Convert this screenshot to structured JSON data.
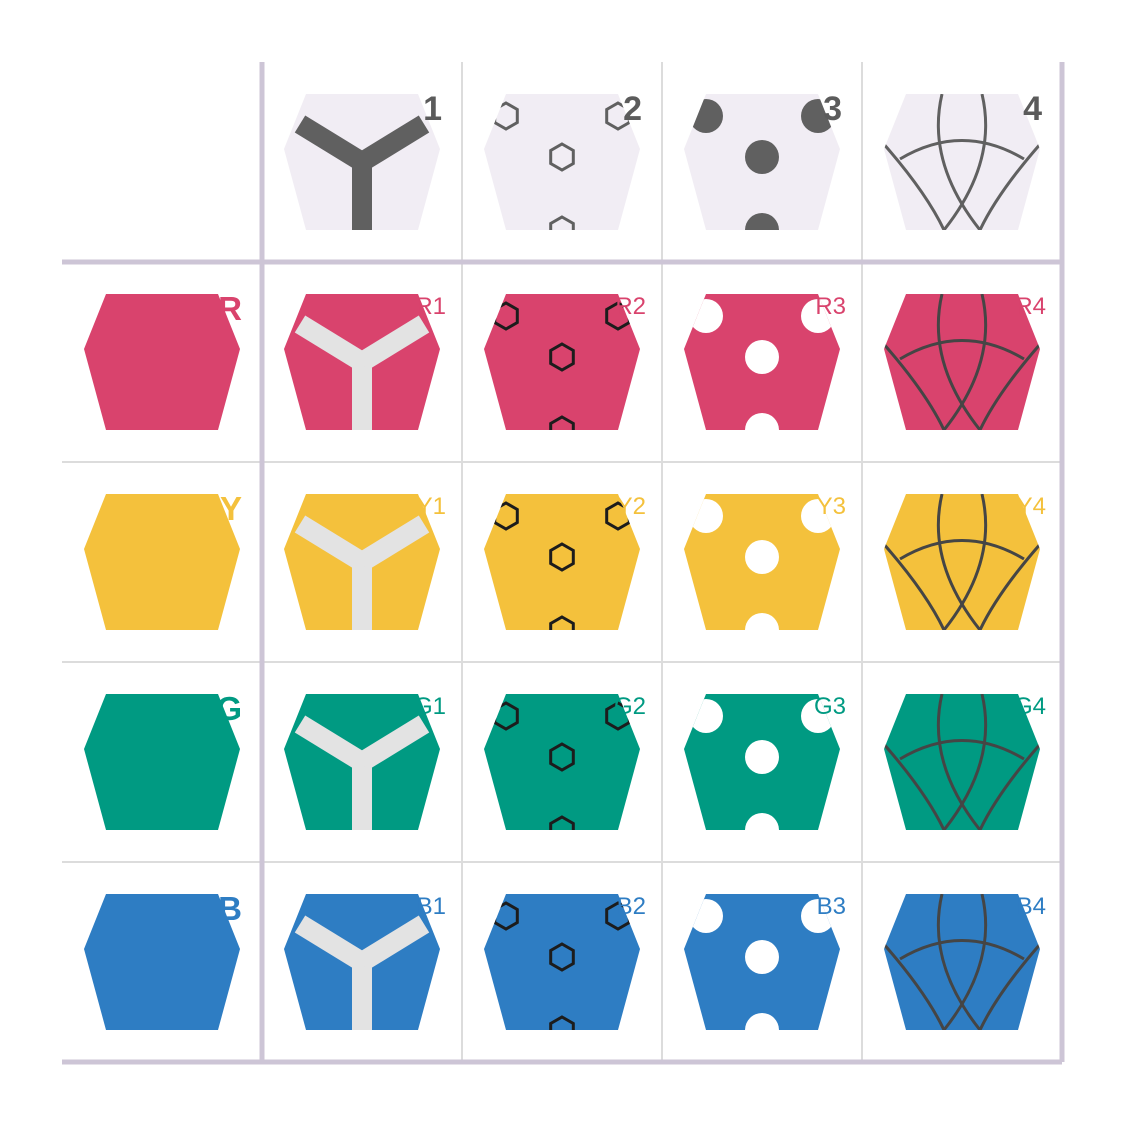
{
  "columns": [
    {
      "label": "1",
      "pattern": "y-bar"
    },
    {
      "label": "2",
      "pattern": "hex-rings"
    },
    {
      "label": "3",
      "pattern": "dots"
    },
    {
      "label": "4",
      "pattern": "arcs"
    }
  ],
  "rows": [
    {
      "label": "R",
      "color": "#d9436d",
      "cells": [
        "R1",
        "R2",
        "R3",
        "R4"
      ]
    },
    {
      "label": "Y",
      "color": "#f4c13c",
      "cells": [
        "Y1",
        "Y2",
        "Y3",
        "Y4"
      ]
    },
    {
      "label": "G",
      "color": "#009a82",
      "cells": [
        "G1",
        "G2",
        "G3",
        "G4"
      ]
    },
    {
      "label": "B",
      "color": "#2e7dc3",
      "cells": [
        "B1",
        "B2",
        "B3",
        "B4"
      ]
    }
  ],
  "colors": {
    "header_tile": "#f1edf4",
    "header_pattern": "#606060",
    "grid_thick": "#cdc5d6",
    "grid_thin": "#dcdcdc",
    "bar_light": "#e3e3e3",
    "outline_dark": "#1c1c1c",
    "arc_dark": "#454545"
  }
}
